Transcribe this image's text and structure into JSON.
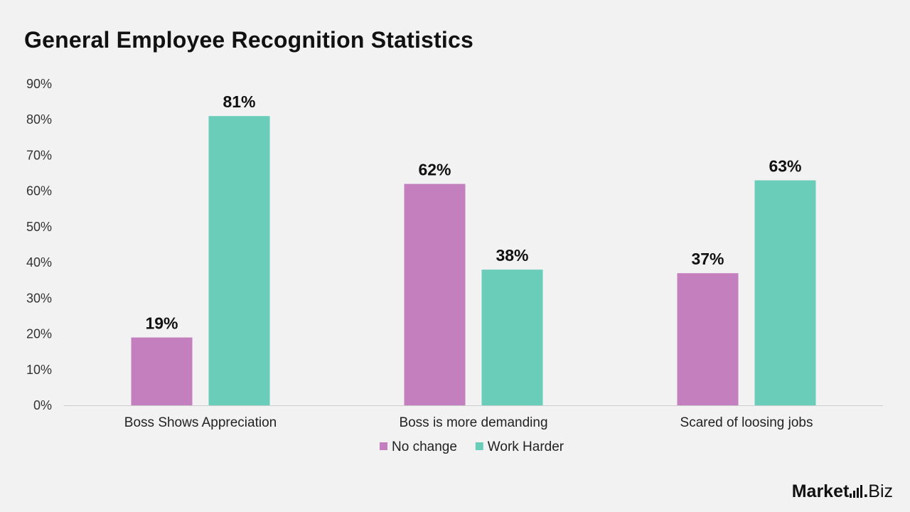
{
  "title": "General Employee Recognition Statistics",
  "brand": {
    "name": "Market",
    "dot": ".",
    "suffix": "Biz"
  },
  "colors": {
    "no_change": "#c47fbe",
    "work_harder": "#6acdb9",
    "axis": "#cccccc"
  },
  "chart_data": {
    "type": "bar",
    "title": "General Employee Recognition Statistics",
    "categories": [
      "Boss Shows Appreciation",
      "Boss is more demanding",
      "Scared of loosing jobs"
    ],
    "series": [
      {
        "name": "No change",
        "values": [
          19,
          62,
          37
        ]
      },
      {
        "name": "Work Harder",
        "values": [
          81,
          38,
          63
        ]
      }
    ],
    "data_labels": [
      [
        "19%",
        "62%",
        "37%"
      ],
      [
        "81%",
        "38%",
        "63%"
      ]
    ],
    "ylim": [
      0,
      90
    ],
    "yticks": [
      "0%",
      "10%",
      "20%",
      "30%",
      "40%",
      "50%",
      "60%",
      "70%",
      "80%",
      "90%"
    ],
    "xlabel": "",
    "ylabel": "",
    "grid": false,
    "legend": "bottom"
  }
}
